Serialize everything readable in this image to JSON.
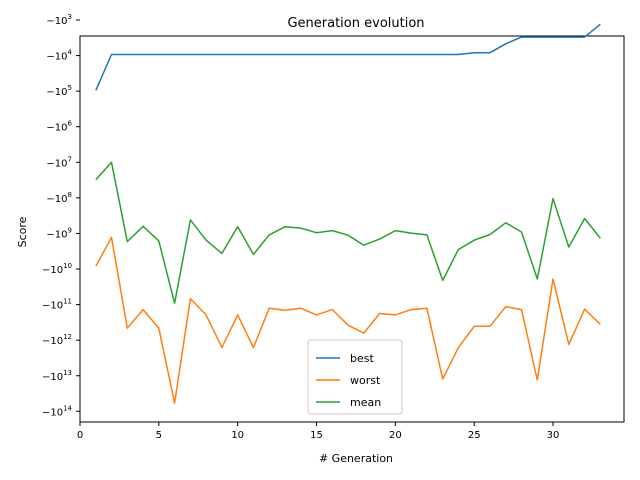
{
  "chart_data": {
    "type": "line",
    "title": "Generation evolution",
    "xlabel": "# Generation",
    "ylabel": "Score",
    "xlim": [
      0,
      34.5
    ],
    "ylim_log_magnitude": [
      3.45,
      14.3
    ],
    "y_scale": "symlog-negative",
    "x_ticks": [
      0,
      5,
      10,
      15,
      20,
      25,
      30
    ],
    "y_ticks": [
      {
        "exp": 3,
        "label": "−10",
        "sup": "3"
      },
      {
        "exp": 4,
        "label": "−10",
        "sup": "4"
      },
      {
        "exp": 5,
        "label": "−10",
        "sup": "5"
      },
      {
        "exp": 6,
        "label": "−10",
        "sup": "6"
      },
      {
        "exp": 7,
        "label": "−10",
        "sup": "7"
      },
      {
        "exp": 8,
        "label": "−10",
        "sup": "8"
      },
      {
        "exp": 9,
        "label": "−10",
        "sup": "9"
      },
      {
        "exp": 10,
        "label": "−10",
        "sup": "10"
      },
      {
        "exp": 11,
        "label": "−10",
        "sup": "11"
      },
      {
        "exp": 12,
        "label": "−10",
        "sup": "12"
      },
      {
        "exp": 13,
        "label": "−10",
        "sup": "13"
      },
      {
        "exp": 14,
        "label": "−10",
        "sup": "14"
      }
    ],
    "legend_position": "lower-center",
    "x": [
      1,
      2,
      3,
      4,
      5,
      6,
      7,
      8,
      9,
      10,
      11,
      12,
      13,
      14,
      15,
      16,
      17,
      18,
      19,
      20,
      21,
      22,
      23,
      24,
      25,
      26,
      27,
      28,
      29,
      30,
      31,
      32,
      33
    ],
    "series": [
      {
        "name": "best",
        "color": "#1f77b4",
        "log10_neg_values": [
          4.98,
          3.97,
          3.97,
          3.97,
          3.97,
          3.97,
          3.97,
          3.97,
          3.97,
          3.97,
          3.97,
          3.97,
          3.97,
          3.97,
          3.97,
          3.97,
          3.97,
          3.97,
          3.97,
          3.97,
          3.97,
          3.97,
          3.97,
          3.97,
          3.92,
          3.92,
          3.67,
          3.48,
          3.48,
          3.48,
          3.48,
          3.48,
          3.12
        ]
      },
      {
        "name": "worst",
        "color": "#ff7f0e",
        "log10_neg_values": [
          9.92,
          9.11,
          11.66,
          11.14,
          11.66,
          13.77,
          10.83,
          11.29,
          12.21,
          11.29,
          12.21,
          11.1,
          11.16,
          11.1,
          11.29,
          11.14,
          11.58,
          11.8,
          11.25,
          11.29,
          11.14,
          11.1,
          13.09,
          12.21,
          11.61,
          11.61,
          11.06,
          11.14,
          13.12,
          10.28,
          12.12,
          11.13,
          11.55
        ]
      },
      {
        "name": "mean",
        "color": "#2ca02c",
        "log10_neg_values": [
          7.49,
          7.0,
          9.23,
          8.8,
          9.21,
          10.96,
          8.62,
          9.19,
          9.56,
          8.81,
          9.59,
          9.04,
          8.81,
          8.85,
          8.98,
          8.92,
          9.05,
          9.33,
          9.16,
          8.92,
          8.99,
          9.04,
          10.32,
          9.45,
          9.19,
          9.03,
          8.7,
          8.96,
          10.28,
          8.02,
          9.38,
          8.58,
          9.13
        ]
      }
    ]
  }
}
